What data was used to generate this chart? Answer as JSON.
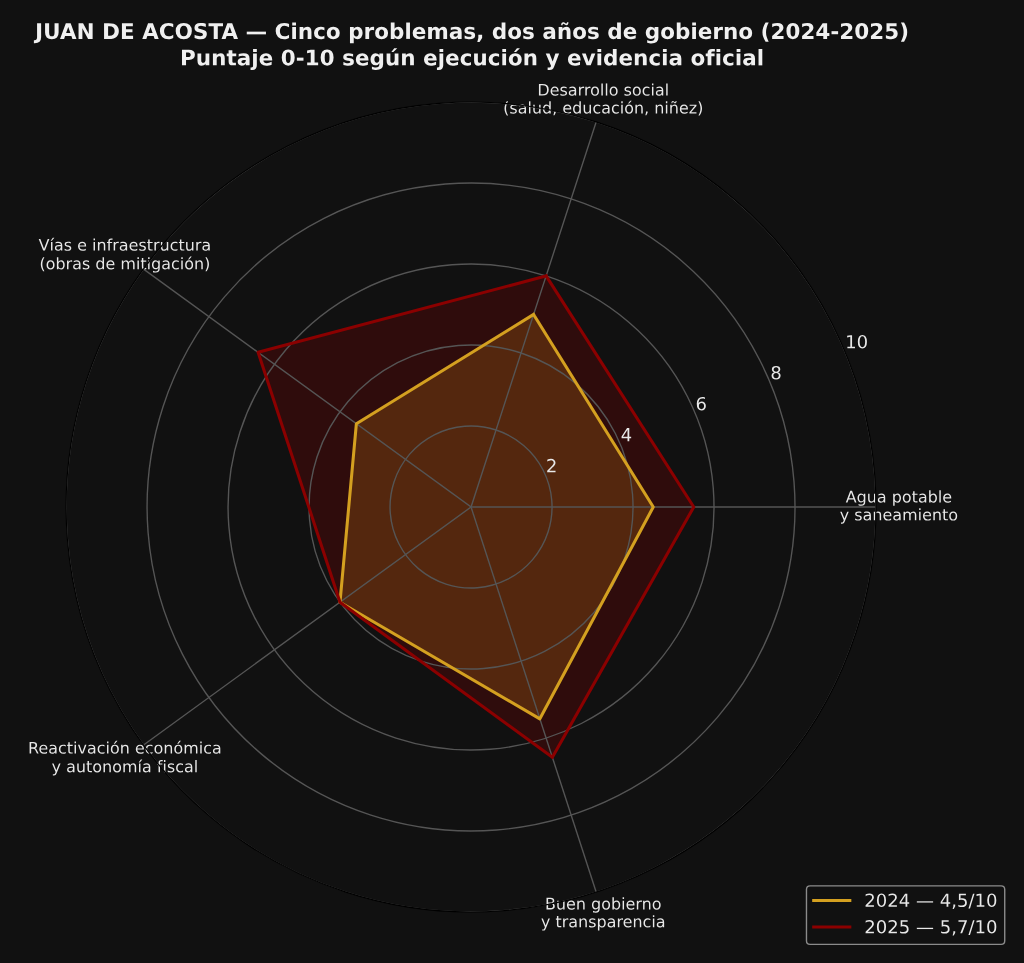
{
  "chart_data": {
    "type": "radar",
    "title": "JUAN DE ACOSTA — Cinco problemas, dos años de gobierno (2024-2025)",
    "subtitle": "Puntaje 0-10 según ejecución y evidencia oficial",
    "categories": [
      "Desarrollo social\n(salud, educación, niñez)",
      "Agua potable\ny saneamiento",
      "Buen gobierno\ny transparencia",
      "Reactivación económica\ny autonomía fiscal",
      "Vías e infraestructura\n(obras de mitigación)"
    ],
    "series": [
      {
        "name": "2024 — 4,5/10",
        "color": "#d4a020",
        "values": [
          5.0,
          4.5,
          5.5,
          4.0,
          3.5
        ]
      },
      {
        "name": "2025 — 5,7/10",
        "color": "#8b0000",
        "values": [
          6.0,
          5.5,
          6.5,
          4.0,
          6.5
        ]
      }
    ],
    "ylim": [
      0,
      10
    ],
    "yticks": [
      2,
      4,
      6,
      8,
      10
    ],
    "grid": true,
    "legend": "bottom right"
  }
}
